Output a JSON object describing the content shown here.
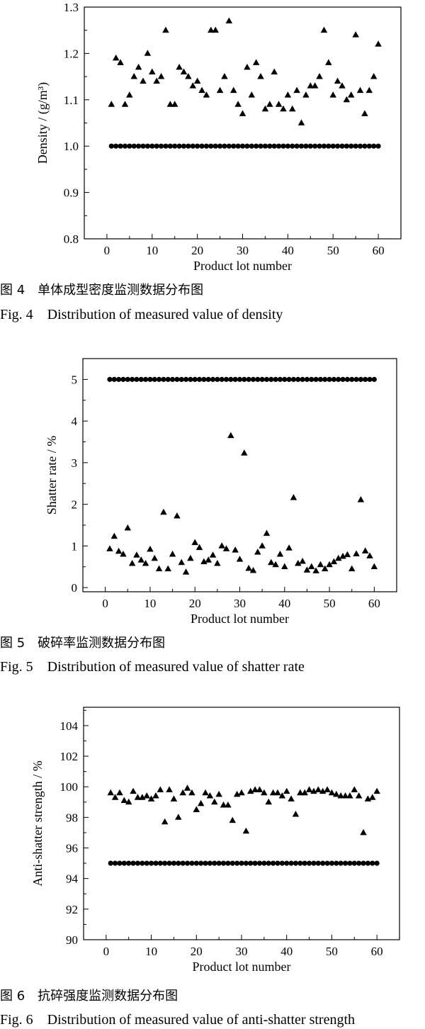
{
  "captions": [
    {
      "cn": "图 4　单体成型密度监测数据分布图",
      "en": "Fig. 4　Distribution of measured value of density"
    },
    {
      "cn": "图 5　破碎率监测数据分布图",
      "en": "Fig. 5　Distribution of measured value of shatter rate"
    },
    {
      "cn": "图 6　抗碎强度监测数据分布图",
      "en": "Fig. 6　Distribution of measured value of anti-shatter strength"
    }
  ],
  "chart_data": [
    {
      "type": "scatter",
      "title": "",
      "xlabel": "Product lot number",
      "ylabel": "Density / (g/m³)",
      "xlim": [
        -5,
        65
      ],
      "ylim": [
        0.8,
        1.3
      ],
      "x_ticks": [
        0,
        10,
        20,
        30,
        40,
        50,
        60
      ],
      "y_ticks": [
        0.8,
        0.9,
        1.0,
        1.1,
        1.2,
        1.3
      ],
      "y_tick_labels": [
        "0.8",
        "0.9",
        "1.0",
        "1.1",
        "1.2",
        "1.3"
      ],
      "series": [
        {
          "marker": "triangle",
          "x": [
            1,
            2,
            3,
            4,
            5,
            6,
            7,
            8,
            9,
            10,
            11,
            12,
            13,
            14,
            15,
            16,
            17,
            18,
            19,
            20,
            21,
            22,
            23,
            24,
            25,
            26,
            27,
            28,
            29,
            30,
            31,
            32,
            33,
            34,
            35,
            36,
            37,
            38,
            39,
            40,
            41,
            42,
            43,
            44,
            45,
            46,
            47,
            48,
            49,
            50,
            51,
            52,
            53,
            54,
            55,
            56,
            57,
            58,
            59,
            60
          ],
          "y": [
            1.09,
            1.19,
            1.18,
            1.09,
            1.11,
            1.15,
            1.17,
            1.14,
            1.2,
            1.16,
            1.14,
            1.15,
            1.25,
            1.09,
            1.09,
            1.17,
            1.16,
            1.15,
            1.13,
            1.14,
            1.12,
            1.11,
            1.25,
            1.25,
            1.12,
            1.15,
            1.27,
            1.12,
            1.09,
            1.07,
            1.17,
            1.11,
            1.18,
            1.15,
            1.08,
            1.09,
            1.16,
            1.09,
            1.08,
            1.11,
            1.08,
            1.12,
            1.05,
            1.11,
            1.13,
            1.13,
            1.15,
            1.25,
            1.18,
            1.11,
            1.14,
            1.13,
            1.1,
            1.11,
            1.24,
            1.12,
            1.07,
            1.12,
            1.15,
            1.22
          ]
        },
        {
          "marker": "circle",
          "x": [
            1,
            2,
            3,
            4,
            5,
            6,
            7,
            8,
            9,
            10,
            11,
            12,
            13,
            14,
            15,
            16,
            17,
            18,
            19,
            20,
            21,
            22,
            23,
            24,
            25,
            26,
            27,
            28,
            29,
            30,
            31,
            32,
            33,
            34,
            35,
            36,
            37,
            38,
            39,
            40,
            41,
            42,
            43,
            44,
            45,
            46,
            47,
            48,
            49,
            50,
            51,
            52,
            53,
            54,
            55,
            56,
            57,
            58,
            59,
            60
          ],
          "y": [
            1.0,
            1.0,
            1.0,
            1.0,
            1.0,
            1.0,
            1.0,
            1.0,
            1.0,
            1.0,
            1.0,
            1.0,
            1.0,
            1.0,
            1.0,
            1.0,
            1.0,
            1.0,
            1.0,
            1.0,
            1.0,
            1.0,
            1.0,
            1.0,
            1.0,
            1.0,
            1.0,
            1.0,
            1.0,
            1.0,
            1.0,
            1.0,
            1.0,
            1.0,
            1.0,
            1.0,
            1.0,
            1.0,
            1.0,
            1.0,
            1.0,
            1.0,
            1.0,
            1.0,
            1.0,
            1.0,
            1.0,
            1.0,
            1.0,
            1.0,
            1.0,
            1.0,
            1.0,
            1.0,
            1.0,
            1.0,
            1.0,
            1.0,
            1.0,
            1.0
          ]
        }
      ]
    },
    {
      "type": "scatter",
      "title": "",
      "xlabel": "Product lot number",
      "ylabel": "Shatter rate / %",
      "xlim": [
        -5,
        65
      ],
      "ylim": [
        -0.1,
        5.5
      ],
      "x_ticks": [
        0,
        10,
        20,
        30,
        40,
        50,
        60
      ],
      "y_ticks": [
        0,
        1,
        2,
        3,
        4,
        5
      ],
      "y_tick_labels": [
        "0",
        "1",
        "2",
        "3",
        "4",
        "5"
      ],
      "series": [
        {
          "marker": "triangle",
          "x": [
            1,
            2,
            3,
            4,
            5,
            6,
            7,
            8,
            9,
            10,
            11,
            12,
            13,
            14,
            15,
            16,
            17,
            18,
            19,
            20,
            21,
            22,
            23,
            24,
            25,
            26,
            27,
            28,
            29,
            30,
            31,
            32,
            33,
            34,
            35,
            36,
            37,
            38,
            39,
            40,
            41,
            42,
            43,
            44,
            45,
            46,
            47,
            48,
            49,
            50,
            51,
            52,
            53,
            54,
            55,
            56,
            57,
            58,
            59,
            60
          ],
          "y": [
            0.93,
            1.23,
            0.87,
            0.8,
            1.43,
            0.58,
            0.78,
            0.66,
            0.58,
            0.92,
            0.7,
            0.45,
            1.81,
            0.45,
            0.8,
            1.72,
            0.6,
            0.37,
            0.7,
            1.08,
            0.96,
            0.62,
            0.66,
            0.78,
            0.58,
            1.0,
            0.93,
            3.65,
            0.9,
            0.68,
            3.23,
            0.46,
            0.41,
            0.85,
            1.0,
            1.3,
            0.6,
            0.55,
            0.8,
            0.5,
            0.95,
            2.16,
            0.58,
            0.63,
            0.42,
            0.5,
            0.4,
            0.55,
            0.45,
            0.55,
            0.62,
            0.7,
            0.75,
            0.79,
            0.45,
            0.81,
            2.11,
            0.88,
            0.76,
            0.5
          ]
        },
        {
          "marker": "circle",
          "x": [
            1,
            2,
            3,
            4,
            5,
            6,
            7,
            8,
            9,
            10,
            11,
            12,
            13,
            14,
            15,
            16,
            17,
            18,
            19,
            20,
            21,
            22,
            23,
            24,
            25,
            26,
            27,
            28,
            29,
            30,
            31,
            32,
            33,
            34,
            35,
            36,
            37,
            38,
            39,
            40,
            41,
            42,
            43,
            44,
            45,
            46,
            47,
            48,
            49,
            50,
            51,
            52,
            53,
            54,
            55,
            56,
            57,
            58,
            59,
            60
          ],
          "y": [
            5,
            5,
            5,
            5,
            5,
            5,
            5,
            5,
            5,
            5,
            5,
            5,
            5,
            5,
            5,
            5,
            5,
            5,
            5,
            5,
            5,
            5,
            5,
            5,
            5,
            5,
            5,
            5,
            5,
            5,
            5,
            5,
            5,
            5,
            5,
            5,
            5,
            5,
            5,
            5,
            5,
            5,
            5,
            5,
            5,
            5,
            5,
            5,
            5,
            5,
            5,
            5,
            5,
            5,
            5,
            5,
            5,
            5,
            5,
            5
          ]
        }
      ]
    },
    {
      "type": "scatter",
      "title": "",
      "xlabel": "Product lot number",
      "ylabel": "Anti-shatter strength / %",
      "xlim": [
        -5,
        65
      ],
      "ylim": [
        90,
        105.2
      ],
      "x_ticks": [
        0,
        10,
        20,
        30,
        40,
        50,
        60
      ],
      "y_ticks": [
        90,
        92,
        94,
        96,
        98,
        100,
        102,
        104
      ],
      "y_tick_labels": [
        "90",
        "92",
        "94",
        "96",
        "98",
        "100",
        "102",
        "104"
      ],
      "series": [
        {
          "marker": "triangle",
          "x": [
            1,
            2,
            3,
            4,
            5,
            6,
            7,
            8,
            9,
            10,
            11,
            12,
            13,
            14,
            15,
            16,
            17,
            18,
            19,
            20,
            21,
            22,
            23,
            24,
            25,
            26,
            27,
            28,
            29,
            30,
            31,
            32,
            33,
            34,
            35,
            36,
            37,
            38,
            39,
            40,
            41,
            42,
            43,
            44,
            45,
            46,
            47,
            48,
            49,
            50,
            51,
            52,
            53,
            54,
            55,
            56,
            57,
            58,
            59,
            60
          ],
          "y": [
            99.6,
            99.3,
            99.6,
            99.1,
            99.0,
            99.7,
            99.3,
            99.3,
            99.4,
            99.2,
            99.4,
            99.8,
            97.7,
            99.8,
            99.2,
            98.0,
            99.6,
            99.9,
            99.6,
            98.5,
            98.9,
            99.6,
            99.4,
            99.0,
            99.5,
            98.8,
            98.8,
            97.8,
            99.5,
            99.6,
            97.1,
            99.7,
            99.8,
            99.8,
            99.6,
            99.0,
            99.6,
            99.6,
            99.4,
            99.7,
            99.2,
            98.2,
            99.6,
            99.6,
            99.8,
            99.7,
            99.8,
            99.7,
            99.8,
            99.6,
            99.5,
            99.4,
            99.4,
            99.4,
            99.8,
            99.4,
            97.0,
            99.2,
            99.3,
            99.7
          ]
        },
        {
          "marker": "circle",
          "x": [
            1,
            2,
            3,
            4,
            5,
            6,
            7,
            8,
            9,
            10,
            11,
            12,
            13,
            14,
            15,
            16,
            17,
            18,
            19,
            20,
            21,
            22,
            23,
            24,
            25,
            26,
            27,
            28,
            29,
            30,
            31,
            32,
            33,
            34,
            35,
            36,
            37,
            38,
            39,
            40,
            41,
            42,
            43,
            44,
            45,
            46,
            47,
            48,
            49,
            50,
            51,
            52,
            53,
            54,
            55,
            56,
            57,
            58,
            59,
            60
          ],
          "y": [
            95,
            95,
            95,
            95,
            95,
            95,
            95,
            95,
            95,
            95,
            95,
            95,
            95,
            95,
            95,
            95,
            95,
            95,
            95,
            95,
            95,
            95,
            95,
            95,
            95,
            95,
            95,
            95,
            95,
            95,
            95,
            95,
            95,
            95,
            95,
            95,
            95,
            95,
            95,
            95,
            95,
            95,
            95,
            95,
            95,
            95,
            95,
            95,
            95,
            95,
            95,
            95,
            95,
            95,
            95,
            95,
            95,
            95,
            95,
            95
          ]
        }
      ]
    }
  ]
}
